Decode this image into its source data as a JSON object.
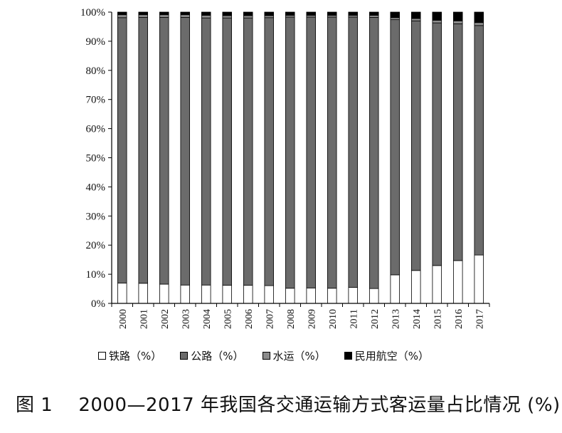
{
  "chart_data": {
    "type": "bar",
    "stacked": true,
    "categories": [
      "2000",
      "2001",
      "2002",
      "2003",
      "2004",
      "2005",
      "2006",
      "2007",
      "2008",
      "2009",
      "2010",
      "2011",
      "2012",
      "2013",
      "2014",
      "2015",
      "2016",
      "2017"
    ],
    "series": [
      {
        "name": "铁路（%）",
        "color": "#ffffff",
        "values": [
          7.0,
          6.9,
          6.6,
          6.3,
          6.3,
          6.2,
          6.2,
          6.1,
          5.2,
          5.3,
          5.2,
          5.5,
          5.1,
          9.8,
          11.3,
          13.0,
          14.7,
          16.6
        ]
      },
      {
        "name": "公路（%）",
        "color": "#6b6b6b",
        "values": [
          91.1,
          91.3,
          91.6,
          91.9,
          91.7,
          91.8,
          91.8,
          92.0,
          93.1,
          93.0,
          93.1,
          92.8,
          93.1,
          87.6,
          85.7,
          83.3,
          81.3,
          78.8
        ]
      },
      {
        "name": "水运（%）",
        "color": "#8c8c8c",
        "values": [
          1.0,
          0.9,
          0.9,
          0.9,
          0.9,
          0.8,
          0.8,
          0.7,
          0.6,
          0.6,
          0.6,
          0.6,
          0.7,
          0.7,
          0.8,
          0.9,
          1.0,
          1.0
        ]
      },
      {
        "name": "民用航空（%）",
        "color": "#000000",
        "values": [
          0.9,
          0.9,
          0.9,
          0.9,
          1.1,
          1.2,
          1.2,
          1.2,
          1.1,
          1.1,
          1.1,
          1.1,
          1.1,
          1.9,
          2.2,
          2.8,
          3.0,
          3.6
        ]
      }
    ],
    "yticks": [
      "0%",
      "10%",
      "20%",
      "30%",
      "40%",
      "50%",
      "60%",
      "70%",
      "80%",
      "90%",
      "100%"
    ],
    "ylim": [
      0,
      100
    ],
    "legend_position": "bottom"
  },
  "caption": {
    "figure_label": "图 1",
    "title": "2000—2017 年我国各交通运输方式客运量占比情况 (%)"
  }
}
